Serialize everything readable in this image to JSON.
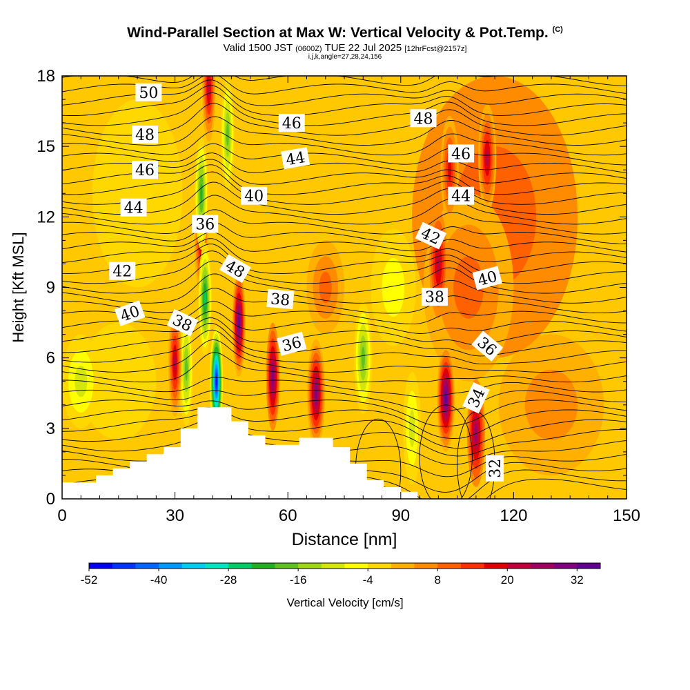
{
  "header": {
    "title": "Wind-Parallel Section at Max W: Vertical Velocity & Pot.Temp.",
    "copyright": "(C)",
    "valid_prefix": "Valid 1500 JST",
    "valid_utc": "(0600Z)",
    "valid_date": "TUE 22 Jul 2025",
    "fcst": "[12hrFcst@2157z]",
    "ijk": "i,j,k,angle=27,28,24,156"
  },
  "chart_data": {
    "type": "heatmap",
    "title": "Wind-Parallel Section at Max W: Vertical Velocity & Pot.Temp.",
    "xlabel": "Distance [nm]",
    "ylabel": "Height [Kft MSL]",
    "xlim": [
      0,
      150
    ],
    "ylim": [
      0,
      18
    ],
    "xticks": [
      0,
      30,
      60,
      90,
      120,
      150
    ],
    "yticks": [
      0,
      3,
      6,
      9,
      12,
      15,
      18
    ],
    "colorbar": {
      "title": "Vertical Velocity [cm/s]",
      "tick_labels": [
        "-52",
        "-40",
        "-28",
        "-16",
        "-4",
        "8",
        "20",
        "32"
      ],
      "colors": [
        "#0000f2",
        "#0033ff",
        "#0066ff",
        "#0099ff",
        "#00ccf0",
        "#00e6c0",
        "#00cc66",
        "#22b022",
        "#60c020",
        "#9fd616",
        "#d4e60a",
        "#ffff00",
        "#ffd800",
        "#ffb000",
        "#ff8c00",
        "#ff6000",
        "#ff3000",
        "#e00000",
        "#c0003c",
        "#a00060",
        "#800080",
        "#600090"
      ]
    },
    "updrafts": [
      {
        "x": 30,
        "y": 5.8,
        "w": 22
      },
      {
        "x": 37,
        "y": 11,
        "w": 22
      },
      {
        "x": 39,
        "y": 17.5,
        "w": 22
      },
      {
        "x": 47,
        "y": 7.5,
        "w": 34
      },
      {
        "x": 56,
        "y": 5.2,
        "w": 28
      },
      {
        "x": 67.5,
        "y": 4.5,
        "w": 30
      },
      {
        "x": 100,
        "y": 10,
        "w": 20
      },
      {
        "x": 102,
        "y": 4.3,
        "w": 34
      },
      {
        "x": 103,
        "y": 14,
        "w": 18
      },
      {
        "x": 110,
        "y": 2.8,
        "w": 24
      },
      {
        "x": 113,
        "y": 14.5,
        "w": 22
      }
    ],
    "downdrafts": [
      {
        "x": 33,
        "y": 5.5,
        "w": -20
      },
      {
        "x": 37,
        "y": 13,
        "w": -24
      },
      {
        "x": 38,
        "y": 8.5,
        "w": -28
      },
      {
        "x": 41,
        "y": 5,
        "w": -52
      },
      {
        "x": 44,
        "y": 15.5,
        "w": -18
      },
      {
        "x": 80,
        "y": 6,
        "w": -20
      },
      {
        "x": 93,
        "y": 3,
        "w": -12
      }
    ],
    "theta_labels": [
      "50",
      "48",
      "46",
      "44",
      "42",
      "40",
      "38",
      "36",
      "48",
      "46",
      "44",
      "40",
      "38",
      "36",
      "48",
      "46",
      "44",
      "42",
      "40",
      "38",
      "36",
      "34",
      "32"
    ],
    "terrain_heights_kft": [
      0.7,
      0.7,
      1.0,
      1.3,
      1.6,
      1.9,
      2.2,
      3.0,
      3.9,
      3.9,
      3.3,
      2.7,
      2.3,
      2.3,
      2.6,
      2.6,
      2.2,
      1.5,
      0.8,
      0.5,
      0.3
    ]
  }
}
